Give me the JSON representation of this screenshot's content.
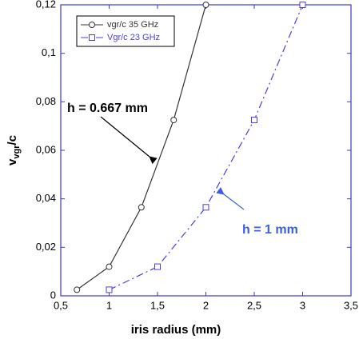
{
  "chart_data": {
    "type": "line",
    "x_label": "iris radius (mm)",
    "y_label": "v",
    "y_label_sub": "vgr",
    "y_label_suffix": "/c",
    "series": [
      {
        "name": "vgr/c 35 GHz",
        "color": "#333333",
        "marker": "circle",
        "dash": "solid",
        "x": [
          0.667,
          1,
          1.333,
          1.667,
          2
        ],
        "values": [
          0.0025,
          0.012,
          0.0365,
          0.0725,
          0.12
        ]
      },
      {
        "name": "Vgr/c 23 GHz",
        "color": "#4b3fe0",
        "marker": "square",
        "dash": "dashdot",
        "x": [
          1,
          1.5,
          2,
          2.5,
          3
        ],
        "values": [
          0.0025,
          0.012,
          0.0365,
          0.0725,
          0.12
        ]
      }
    ],
    "xlim": [
      0.5,
      3.5
    ],
    "xticks": [
      {
        "value": 0.5,
        "label": "0,5"
      },
      1,
      {
        "value": 1.5,
        "label": "1,5"
      },
      2,
      {
        "value": 2.5,
        "label": "2,5"
      },
      3,
      {
        "value": 3.5,
        "label": "3,5"
      }
    ],
    "ylim": [
      0,
      0.12
    ],
    "yticks": [
      0,
      {
        "value": 0.02,
        "label": "0,02"
      },
      {
        "value": 0.04,
        "label": "0,04"
      },
      {
        "value": 0.06,
        "label": "0,06"
      },
      {
        "value": 0.08,
        "label": "0,08"
      },
      {
        "value": 0.1,
        "label": "0,1"
      },
      {
        "value": 0.12,
        "label": "0,12"
      }
    ],
    "legend": "upper left",
    "annotations": [
      {
        "text": "h  = 0.667 mm",
        "color": "#000000"
      },
      {
        "text": "h = 1 mm",
        "color": "#3b5ee8"
      }
    ]
  }
}
